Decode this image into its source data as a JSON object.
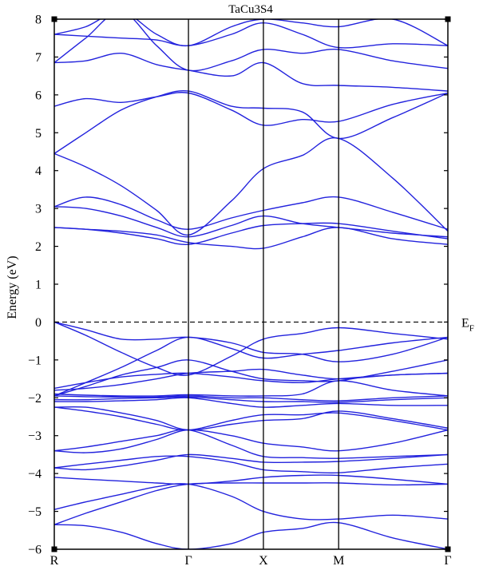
{
  "chart_data": {
    "type": "line",
    "title": "TaCu3S4",
    "ylabel": "Energy (eV)",
    "ylim": [
      -6,
      8
    ],
    "yticks": [
      -6,
      -5,
      -4,
      -3,
      -2,
      -1,
      0,
      1,
      2,
      3,
      4,
      5,
      6,
      7,
      8
    ],
    "kpoints": [
      {
        "label": "R",
        "pos": 0.0
      },
      {
        "label": "Γ",
        "pos": 0.3409
      },
      {
        "label": "X",
        "pos": 0.5313
      },
      {
        "label": "M",
        "pos": 0.7225
      },
      {
        "label": "Γ",
        "pos": 1.0
      }
    ],
    "fermi_level": {
      "energy": 0,
      "label": "E",
      "sub": "F"
    },
    "line_color": "#2222dd",
    "bands": [
      {
        "x": [
          0.0,
          0.08,
          0.17,
          0.26,
          0.3409,
          0.45,
          0.5313,
          0.63,
          0.7225,
          0.86,
          1.0
        ],
        "y": [
          -5.35,
          -5.38,
          -5.55,
          -5.85,
          -6.0,
          -5.85,
          -5.55,
          -5.45,
          -5.3,
          -5.7,
          -6.0
        ]
      },
      {
        "x": [
          0.0,
          0.08,
          0.17,
          0.26,
          0.3409,
          0.45,
          0.5313,
          0.63,
          0.7225,
          0.86,
          1.0
        ],
        "y": [
          -5.35,
          -5.05,
          -4.75,
          -4.45,
          -4.28,
          -4.25,
          -4.25,
          -4.25,
          -4.25,
          -4.3,
          -4.28
        ]
      },
      {
        "x": [
          0.0,
          0.08,
          0.17,
          0.26,
          0.3409,
          0.45,
          0.5313,
          0.63,
          0.7225,
          0.86,
          1.0
        ],
        "y": [
          -4.95,
          -4.75,
          -4.55,
          -4.35,
          -4.28,
          -4.6,
          -5.0,
          -5.2,
          -5.2,
          -5.1,
          -5.2
        ]
      },
      {
        "x": [
          0.0,
          0.08,
          0.17,
          0.26,
          0.3409,
          0.45,
          0.5313,
          0.63,
          0.7225,
          0.86,
          1.0
        ],
        "y": [
          -4.1,
          -4.15,
          -4.2,
          -4.25,
          -4.28,
          -4.2,
          -4.1,
          -4.05,
          -4.05,
          -4.15,
          -4.28
        ]
      },
      {
        "x": [
          0.0,
          0.08,
          0.17,
          0.26,
          0.3409,
          0.45,
          0.5313,
          0.63,
          0.7225,
          0.86,
          1.0
        ],
        "y": [
          -3.85,
          -3.75,
          -3.65,
          -3.55,
          -3.55,
          -3.7,
          -3.9,
          -3.95,
          -3.98,
          -3.85,
          -3.75
        ]
      },
      {
        "x": [
          0.0,
          0.08,
          0.17,
          0.26,
          0.3409,
          0.45,
          0.5313,
          0.63,
          0.7225,
          0.86,
          1.0
        ],
        "y": [
          -3.85,
          -3.9,
          -3.8,
          -3.65,
          -3.5,
          -3.6,
          -3.7,
          -3.7,
          -3.68,
          -3.6,
          -3.5
        ]
      },
      {
        "x": [
          0.0,
          0.08,
          0.17,
          0.26,
          0.3409,
          0.45,
          0.5313,
          0.63,
          0.7225,
          0.86,
          1.0
        ],
        "y": [
          -3.4,
          -3.3,
          -3.15,
          -3.0,
          -2.85,
          -3.25,
          -3.55,
          -3.58,
          -3.6,
          -3.55,
          -3.5
        ]
      },
      {
        "x": [
          0.0,
          0.08,
          0.17,
          0.26,
          0.3409,
          0.45,
          0.5313,
          0.63,
          0.7225,
          0.86,
          1.0
        ],
        "y": [
          -3.4,
          -3.45,
          -3.35,
          -3.1,
          -2.85,
          -3.0,
          -3.2,
          -3.3,
          -3.4,
          -3.2,
          -2.85
        ]
      },
      {
        "x": [
          0.0,
          0.08,
          0.17,
          0.26,
          0.3409,
          0.45,
          0.5313,
          0.63,
          0.7225,
          0.86,
          1.0
        ],
        "y": [
          -2.25,
          -2.35,
          -2.5,
          -2.7,
          -2.85,
          -2.6,
          -2.45,
          -2.45,
          -2.4,
          -2.6,
          -2.85
        ]
      },
      {
        "x": [
          0.0,
          0.08,
          0.17,
          0.26,
          0.3409,
          0.45,
          0.5313,
          0.63,
          0.7225,
          0.86,
          1.0
        ],
        "y": [
          -2.25,
          -2.25,
          -2.4,
          -2.6,
          -2.85,
          -2.7,
          -2.6,
          -2.55,
          -2.35,
          -2.55,
          -2.8
        ]
      },
      {
        "x": [
          0.0,
          0.08,
          0.17,
          0.26,
          0.3409,
          0.45,
          0.5313,
          0.63,
          0.7225,
          0.86,
          1.0
        ],
        "y": [
          -2.1,
          -2.1,
          -2.08,
          -2.05,
          -2.0,
          -2.15,
          -2.25,
          -2.2,
          -2.15,
          -2.2,
          -2.2
        ]
      },
      {
        "x": [
          0.0,
          0.08,
          0.17,
          0.26,
          0.3409,
          0.45,
          0.5313,
          0.63,
          0.7225,
          0.86,
          1.0
        ],
        "y": [
          -2.05,
          -2.05,
          -2.02,
          -2.0,
          -1.98,
          -2.05,
          -2.1,
          -2.1,
          -2.12,
          -2.05,
          -2.0
        ]
      },
      {
        "x": [
          0.0,
          0.08,
          0.17,
          0.26,
          0.3409,
          0.45,
          0.5313,
          0.63,
          0.7225,
          0.86,
          1.0
        ],
        "y": [
          -1.95,
          -1.97,
          -1.98,
          -1.98,
          -1.95,
          -2.0,
          -2.0,
          -2.05,
          -2.08,
          -2.0,
          -1.95
        ]
      },
      {
        "x": [
          0.0,
          0.08,
          0.17,
          0.26,
          0.3409,
          0.45,
          0.5313,
          0.63,
          0.7225,
          0.86,
          1.0
        ],
        "y": [
          -1.9,
          -1.93,
          -1.95,
          -1.95,
          -1.92,
          -1.95,
          -1.95,
          -1.9,
          -1.55,
          -1.8,
          -1.95
        ]
      },
      {
        "x": [
          0.0,
          0.08,
          0.17,
          0.26,
          0.3409,
          0.45,
          0.5313,
          0.63,
          0.7225,
          0.86,
          1.0
        ],
        "y": [
          -1.75,
          -1.6,
          -1.45,
          -1.38,
          -1.35,
          -1.45,
          -1.55,
          -1.6,
          -1.5,
          -1.4,
          -1.35
        ]
      },
      {
        "x": [
          0.0,
          0.08,
          0.17,
          0.26,
          0.3409,
          0.45,
          0.5313,
          0.63,
          0.7225,
          0.86,
          1.0
        ],
        "y": [
          -1.8,
          -1.75,
          -1.65,
          -1.5,
          -1.35,
          -1.3,
          -1.25,
          -1.4,
          -1.5,
          -1.4,
          -1.35
        ]
      },
      {
        "x": [
          0.0,
          0.08,
          0.17,
          0.26,
          0.3409,
          0.45,
          0.5313,
          0.63,
          0.7225,
          0.86,
          1.0
        ],
        "y": [
          -1.95,
          -1.7,
          -1.4,
          -1.2,
          -1.0,
          -1.3,
          -1.5,
          -1.55,
          -1.55,
          -1.3,
          -1.0
        ]
      },
      {
        "x": [
          0.0,
          0.08,
          0.17,
          0.26,
          0.3409,
          0.45,
          0.5313,
          0.63,
          0.7225,
          0.86,
          1.0
        ],
        "y": [
          -1.95,
          -1.6,
          -1.2,
          -0.75,
          -0.4,
          -0.7,
          -0.95,
          -0.85,
          -0.75,
          -0.55,
          -0.4
        ]
      },
      {
        "x": [
          0.0,
          0.08,
          0.17,
          0.26,
          0.3409,
          0.45,
          0.5313,
          0.63,
          0.7225,
          0.86,
          1.0
        ],
        "y": [
          0.0,
          -0.2,
          -0.45,
          -0.45,
          -0.4,
          -0.55,
          -0.8,
          -0.85,
          -1.05,
          -0.85,
          -0.4
        ]
      },
      {
        "x": [
          0.0,
          0.08,
          0.17,
          0.26,
          0.3409,
          0.45,
          0.5313,
          0.63,
          0.7225,
          0.86,
          1.0
        ],
        "y": [
          0.0,
          -0.35,
          -0.8,
          -1.2,
          -1.4,
          -0.9,
          -0.45,
          -0.3,
          -0.15,
          -0.3,
          -0.45
        ]
      },
      {
        "x": [
          0.0,
          0.08,
          0.17,
          0.26,
          0.3409,
          0.45,
          0.5313,
          0.63,
          0.7225,
          0.86,
          1.0
        ],
        "y": [
          2.5,
          2.45,
          2.4,
          2.3,
          2.1,
          2.0,
          1.95,
          2.25,
          2.5,
          2.2,
          2.05
        ]
      },
      {
        "x": [
          0.0,
          0.08,
          0.17,
          0.26,
          0.3409,
          0.45,
          0.5313,
          0.63,
          0.7225,
          0.86,
          1.0
        ],
        "y": [
          2.5,
          2.45,
          2.35,
          2.2,
          2.05,
          2.35,
          2.55,
          2.6,
          2.6,
          2.4,
          2.2
        ]
      },
      {
        "x": [
          0.0,
          0.08,
          0.17,
          0.26,
          0.3409,
          0.45,
          0.5313,
          0.63,
          0.7225,
          0.86,
          1.0
        ],
        "y": [
          3.05,
          3.0,
          2.8,
          2.5,
          2.25,
          2.55,
          2.8,
          2.6,
          2.5,
          2.35,
          2.25
        ]
      },
      {
        "x": [
          0.0,
          0.08,
          0.17,
          0.26,
          0.3409,
          0.45,
          0.5313,
          0.63,
          0.7225,
          0.86,
          1.0
        ],
        "y": [
          3.05,
          3.3,
          3.1,
          2.7,
          2.45,
          2.75,
          2.95,
          3.15,
          3.3,
          2.9,
          2.45
        ]
      },
      {
        "x": [
          0.0,
          0.08,
          0.17,
          0.26,
          0.3409,
          0.45,
          0.5313,
          0.63,
          0.7225,
          0.86,
          1.0
        ],
        "y": [
          4.45,
          4.1,
          3.6,
          2.95,
          2.3,
          3.2,
          4.05,
          4.4,
          4.85,
          3.8,
          2.4
        ]
      },
      {
        "x": [
          0.0,
          0.08,
          0.17,
          0.26,
          0.3409,
          0.45,
          0.5313,
          0.63,
          0.7225,
          0.86,
          1.0
        ],
        "y": [
          4.45,
          5.0,
          5.6,
          5.95,
          6.1,
          5.7,
          5.65,
          5.55,
          4.85,
          5.4,
          6.05
        ]
      },
      {
        "x": [
          0.0,
          0.08,
          0.17,
          0.26,
          0.3409,
          0.45,
          0.5313,
          0.63,
          0.7225,
          0.86,
          1.0
        ],
        "y": [
          5.7,
          5.9,
          5.8,
          5.95,
          6.05,
          5.6,
          5.2,
          5.35,
          5.3,
          5.75,
          6.05
        ]
      },
      {
        "x": [
          0.0,
          0.08,
          0.17,
          0.26,
          0.3409,
          0.45,
          0.5313,
          0.63,
          0.7225,
          0.86,
          1.0
        ],
        "y": [
          6.85,
          6.9,
          7.1,
          6.8,
          6.65,
          6.5,
          6.85,
          6.3,
          6.25,
          6.2,
          6.1
        ]
      },
      {
        "x": [
          0.0,
          0.08,
          0.17,
          0.26,
          0.3409,
          0.45,
          0.5313,
          0.63,
          0.7225,
          0.86,
          1.0
        ],
        "y": [
          6.85,
          7.5,
          8.2,
          7.3,
          6.65,
          6.9,
          7.2,
          7.1,
          7.2,
          6.9,
          6.7
        ]
      },
      {
        "x": [
          0.0,
          0.08,
          0.17,
          0.26,
          0.3409,
          0.45,
          0.5313,
          0.63,
          0.7225,
          0.86,
          1.0
        ],
        "y": [
          7.6,
          7.55,
          7.5,
          7.45,
          7.3,
          7.6,
          7.9,
          7.6,
          7.25,
          7.35,
          7.3
        ]
      },
      {
        "x": [
          0.0,
          0.08,
          0.17,
          0.26,
          0.3409,
          0.45,
          0.5313,
          0.63,
          0.7225,
          0.86,
          1.0
        ],
        "y": [
          7.6,
          7.8,
          8.2,
          7.6,
          7.3,
          7.8,
          8.0,
          7.9,
          7.8,
          8.0,
          7.3
        ]
      }
    ]
  }
}
